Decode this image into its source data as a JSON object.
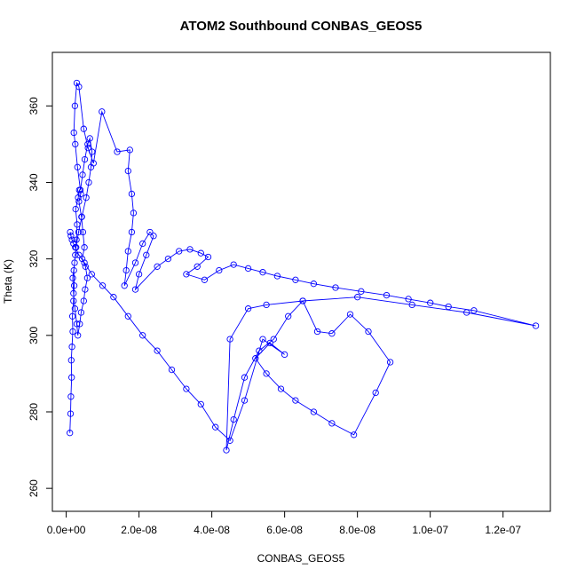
{
  "chart_data": {
    "type": "line",
    "title": "ATOM2 Southbound CONBAS_GEOS5",
    "xlabel": "CONBAS_GEOS5",
    "ylabel": "Theta (K)",
    "xlim": [
      -3.8e-09,
      1.33e-07
    ],
    "ylim": [
      254,
      374
    ],
    "x_ticks": [
      0,
      2e-08,
      4e-08,
      6e-08,
      8e-08,
      1e-07,
      1.2e-07
    ],
    "x_tick_labels": [
      "0.0e+00",
      "2.0e-08",
      "4.0e-08",
      "6.0e-08",
      "8.0e-08",
      "1.0e-07",
      "1.2e-07"
    ],
    "y_ticks": [
      260,
      280,
      300,
      320,
      340,
      360
    ],
    "y_tick_labels": [
      "260",
      "280",
      "300",
      "320",
      "340",
      "360"
    ],
    "marker": "open-circle",
    "color": "#0000ff",
    "series": [
      {
        "name": "CONBAS_GEOS5",
        "x": [
          1e-09,
          1.2e-09,
          1.3e-09,
          1.5e-09,
          1.4e-09,
          1.6e-09,
          1.8e-09,
          1.7e-09,
          2e-09,
          2.2e-09,
          2.1e-09,
          2.5e-09,
          2.8e-09,
          3e-09,
          2.6e-09,
          3.3e-09,
          3.6e-09,
          4e-09,
          3.5e-09,
          4.2e-09,
          4.6e-09,
          5e-09,
          4.4e-09,
          5.3e-09,
          5.8e-09,
          5.2e-09,
          4.8e-09,
          4.1e-09,
          3.7e-09,
          3.2e-09,
          2.9e-09,
          2.4e-09,
          2e-09,
          1.8e-09,
          2.3e-09,
          2.7e-09,
          3.4e-09,
          4.3e-09,
          5.5e-09,
          6.2e-09,
          6.8e-09,
          7.1e-09,
          6.5e-09,
          5.9e-09,
          5.1e-09,
          4.5e-09,
          3.9e-09,
          3.1e-09,
          2.5e-09,
          2.1e-09,
          2.4e-09,
          2.9e-09,
          3.5e-09,
          4.8e-09,
          6e-09,
          7.5e-09,
          9.8e-09,
          1.4e-08,
          1.75e-08,
          1.7e-08,
          1.8e-08,
          1.85e-08,
          1.8e-08,
          1.7e-08,
          1.65e-08,
          1.6e-08,
          1.9e-08,
          2.1e-08,
          2.3e-08,
          2.4e-08,
          2.2e-08,
          2e-08,
          1.9e-08,
          2.5e-08,
          2.8e-08,
          3.1e-08,
          3.4e-08,
          3.7e-08,
          3.9e-08,
          3.6e-08,
          3.3e-08,
          3.8e-08,
          4.2e-08,
          4.6e-08,
          5e-08,
          5.4e-08,
          5.8e-08,
          6.3e-08,
          6.8e-08,
          7.4e-08,
          8.1e-08,
          8.8e-08,
          9.4e-08,
          1e-07,
          1.05e-07,
          1.12e-07,
          1.29e-07,
          1.1e-07,
          9.5e-08,
          8e-08,
          6.5e-08,
          5.5e-08,
          5e-08,
          4.5e-08,
          4.4e-08,
          4.6e-08,
          4.9e-08,
          5.3e-08,
          5.7e-08,
          6.1e-08,
          6.5e-08,
          6.9e-08,
          7.3e-08,
          7.8e-08,
          8.3e-08,
          8.9e-08,
          8.5e-08,
          7.9e-08,
          7.3e-08,
          6.8e-08,
          6.3e-08,
          5.9e-08,
          5.5e-08,
          5.2e-08,
          5.6e-08,
          6e-08,
          5.4e-08,
          4.9e-08,
          4.5e-08,
          4.1e-08,
          3.7e-08,
          3.3e-08,
          2.9e-08,
          2.5e-08,
          2.1e-08,
          1.7e-08,
          1.3e-08,
          1e-08,
          7e-09,
          5e-09,
          3.5e-09,
          2.5e-09,
          2e-09,
          1.6e-09,
          1.3e-09,
          1.1e-09
        ],
        "y": [
          274.5,
          279.5,
          284,
          289,
          293.5,
          297,
          301,
          305,
          309,
          313,
          317,
          321,
          325,
          329,
          333,
          336,
          338,
          337,
          335,
          331,
          327,
          323,
          320,
          318,
          315,
          312,
          309,
          306,
          303,
          300,
          303,
          307,
          311,
          315,
          319,
          323,
          327,
          331,
          336,
          340,
          344,
          348,
          351.5,
          350,
          346,
          342,
          338,
          344,
          350,
          353,
          360,
          366,
          365,
          354,
          349,
          345,
          358.5,
          348,
          348.5,
          343,
          337,
          332,
          327,
          322,
          317,
          313,
          319,
          324,
          327,
          326,
          321,
          316,
          312,
          318,
          320,
          322,
          322.5,
          321.5,
          320.5,
          318,
          316,
          314.5,
          317,
          318.5,
          317.5,
          316.5,
          315.5,
          314.5,
          313.5,
          312.5,
          311.5,
          310.5,
          309.5,
          308.5,
          307.5,
          306.5,
          302.5,
          306,
          308,
          310,
          309,
          308,
          307,
          299,
          270,
          278,
          289,
          296,
          299,
          305,
          309,
          301,
          300.5,
          305.5,
          301,
          293,
          285,
          274,
          277,
          280,
          283,
          286,
          290,
          294,
          298,
          295,
          299,
          283,
          272.5,
          276,
          282,
          286,
          291,
          296,
          300,
          305,
          310,
          313,
          316,
          319,
          321,
          323,
          324,
          325,
          326,
          327
        ]
      }
    ]
  }
}
